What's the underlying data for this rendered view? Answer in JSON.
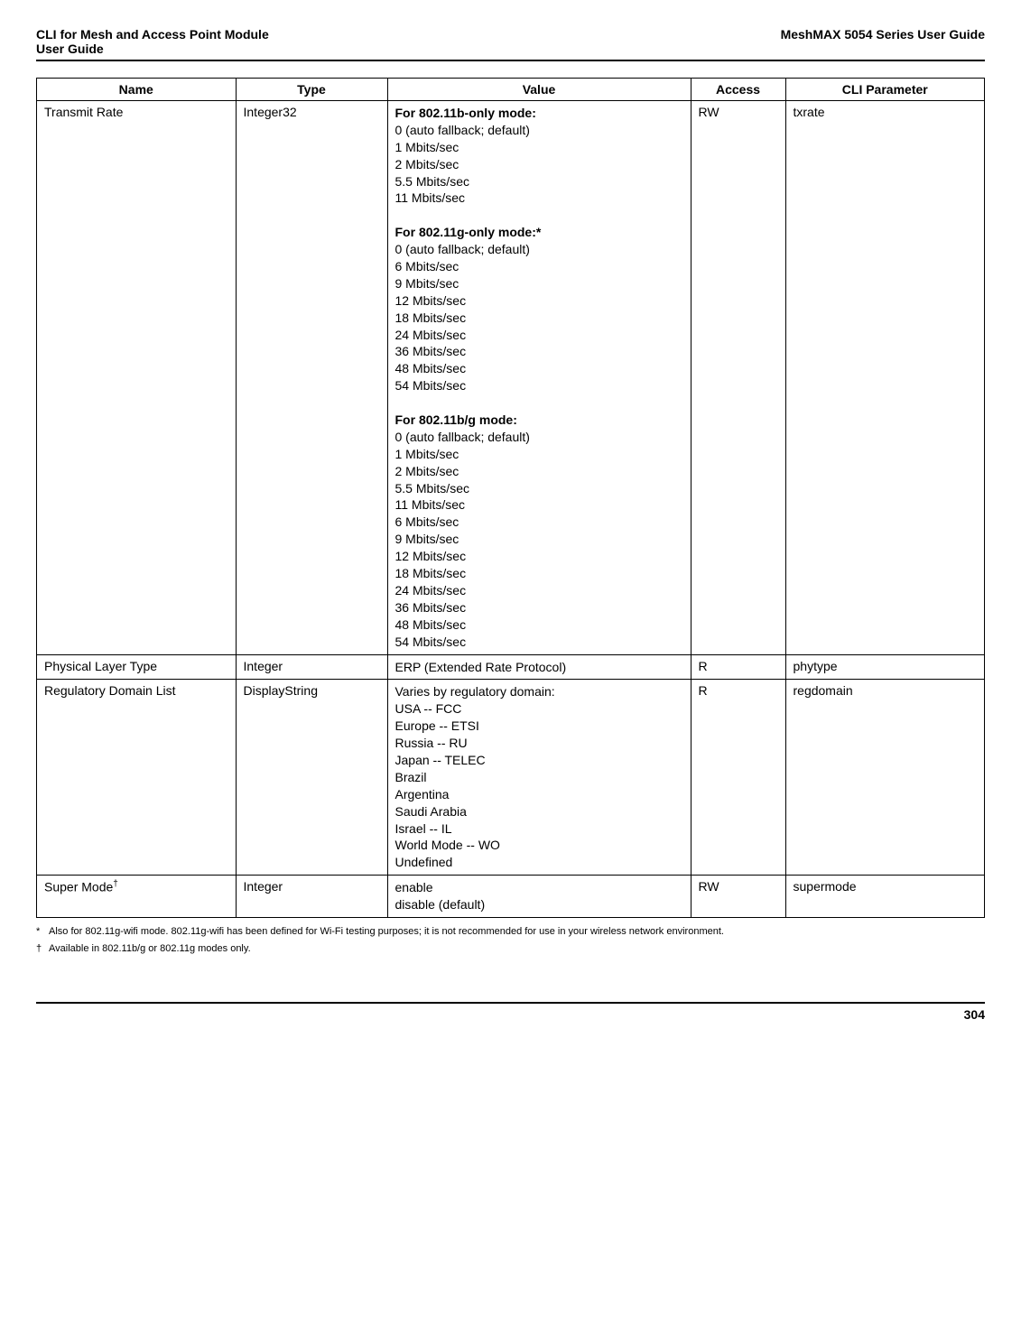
{
  "header": {
    "left_line1": "CLI for Mesh and Access Point Module",
    "left_line2": " User Guide",
    "right": "MeshMAX 5054 Series User Guide"
  },
  "table": {
    "headers": {
      "name": "Name",
      "type": "Type",
      "value": "Value",
      "access": "Access",
      "cli": "CLI Parameter"
    },
    "rows": [
      {
        "name": "Transmit Rate",
        "type": "Integer32",
        "value_segments": [
          {
            "bold": true,
            "text": "For 802.11b-only mode:"
          },
          {
            "bold": false,
            "text": "0 (auto fallback; default)\n1 Mbits/sec\n2 Mbits/sec\n5.5 Mbits/sec\n11 Mbits/sec\n"
          },
          {
            "bold": true,
            "text": "For 802.11g-only mode:*"
          },
          {
            "bold": false,
            "text": "0 (auto fallback; default)\n6 Mbits/sec\n9 Mbits/sec\n12 Mbits/sec\n18 Mbits/sec\n24 Mbits/sec\n36 Mbits/sec\n48 Mbits/sec\n54 Mbits/sec\n"
          },
          {
            "bold": true,
            "text": "For 802.11b/g mode:"
          },
          {
            "bold": false,
            "text": "0 (auto fallback; default)\n1 Mbits/sec\n2 Mbits/sec\n5.5 Mbits/sec\n11 Mbits/sec\n6 Mbits/sec\n9 Mbits/sec\n12 Mbits/sec\n18 Mbits/sec\n24 Mbits/sec\n36 Mbits/sec\n48 Mbits/sec\n54 Mbits/sec"
          }
        ],
        "access": "RW",
        "cli": "txrate"
      },
      {
        "name": "Physical Layer Type",
        "type": "Integer",
        "value_segments": [
          {
            "bold": false,
            "text": "ERP (Extended Rate Protocol)"
          }
        ],
        "access": "R",
        "cli": "phytype"
      },
      {
        "name": "Regulatory Domain List",
        "type": "DisplayString",
        "value_segments": [
          {
            "bold": false,
            "text": "Varies by regulatory domain:\nUSA -- FCC\nEurope -- ETSI\nRussia -- RU\nJapan -- TELEC\nBrazil\nArgentina\nSaudi Arabia\nIsrael -- IL\nWorld Mode -- WO\nUndefined"
          }
        ],
        "access": "R",
        "cli": "regdomain"
      },
      {
        "name": "Super Mode",
        "name_sup": "†",
        "type": "Integer",
        "value_segments": [
          {
            "bold": false,
            "text": "enable\ndisable (default)"
          }
        ],
        "access": "RW",
        "cli": "supermode"
      }
    ]
  },
  "footnotes": [
    {
      "sym": "*",
      "text": "Also for 802.11g-wifi mode. 802.11g-wifi has been defined for Wi-Fi testing purposes; it is not recommended for use in your wireless network environment."
    },
    {
      "sym": "†",
      "text": "Available in 802.11b/g or 802.11g modes only."
    }
  ],
  "pagenum": "304"
}
